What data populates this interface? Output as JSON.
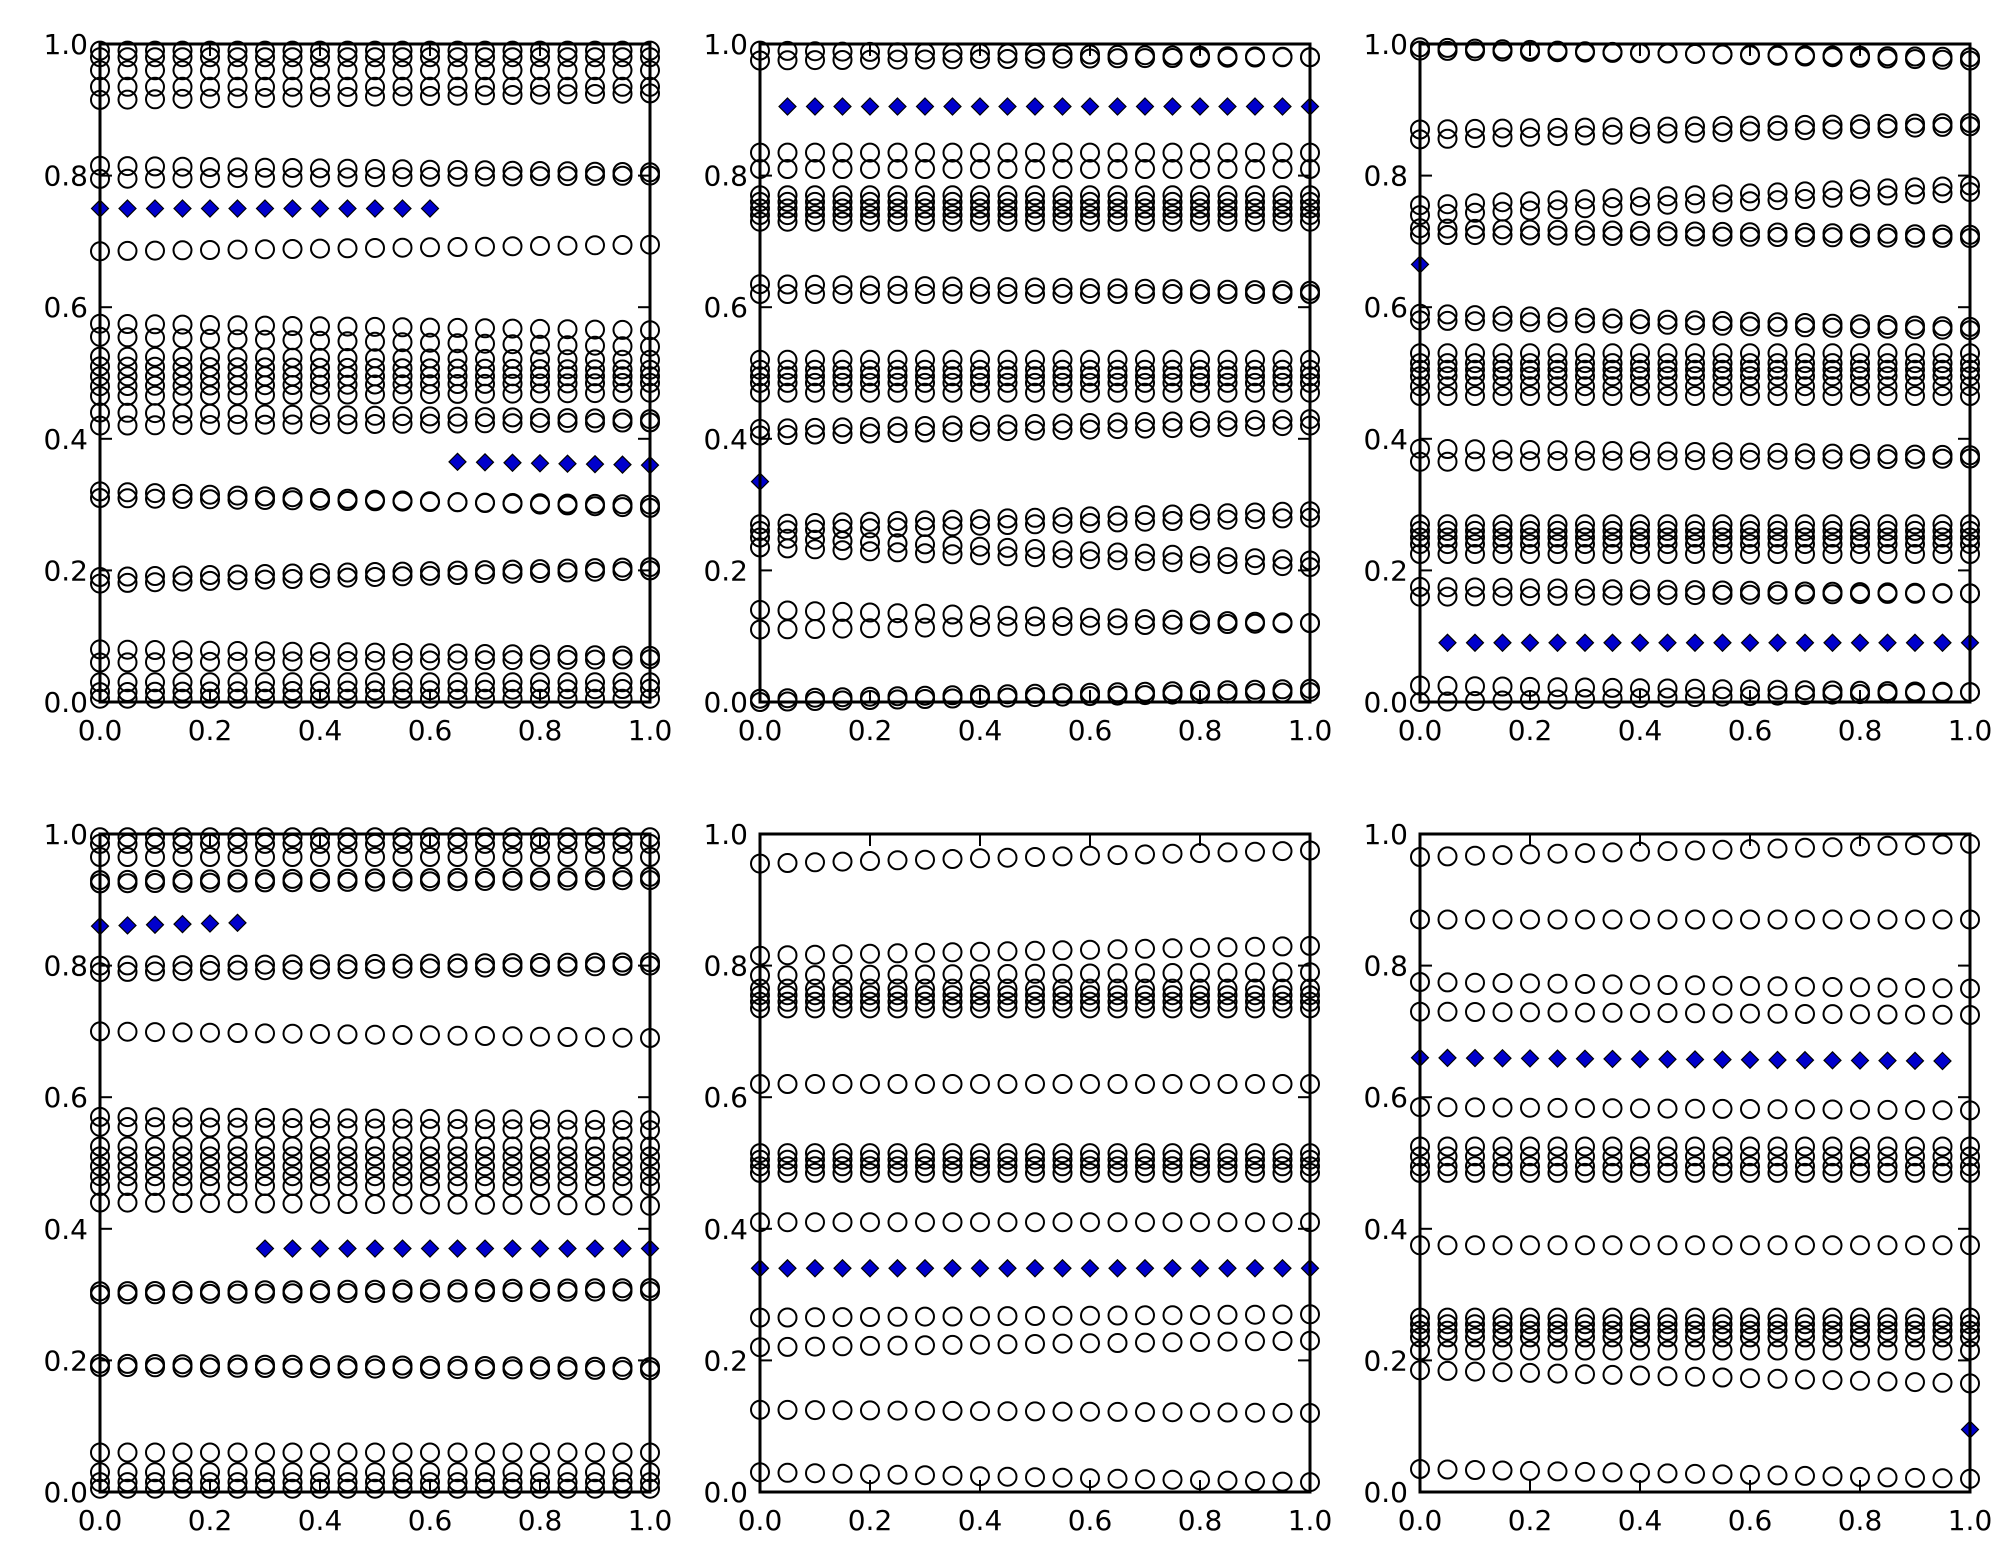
{
  "colors": {
    "diamond_fill": "#0000cc",
    "circle_stroke": "#000000",
    "background": "#ffffff"
  },
  "chart_data": {
    "type": "scatter",
    "title": "",
    "x_points": [
      0.0,
      0.05,
      0.1,
      0.15,
      0.2,
      0.25,
      0.3,
      0.35,
      0.4,
      0.45,
      0.5,
      0.55,
      0.6,
      0.65,
      0.7,
      0.75,
      0.8,
      0.85,
      0.9,
      0.95,
      1.0
    ],
    "xlim": [
      0,
      1
    ],
    "ylim": [
      0,
      1
    ],
    "xticks": [
      "0.0",
      "0.2",
      "0.4",
      "0.6",
      "0.8",
      "1.0"
    ],
    "yticks": [
      "0.0",
      "0.2",
      "0.4",
      "0.6",
      "0.8",
      "1.0"
    ],
    "panels": [
      {
        "name": "panel-1",
        "circle_series": [
          [
            0.99,
            0.99
          ],
          [
            0.98,
            0.98
          ],
          [
            0.96,
            0.96
          ],
          [
            0.935,
            0.935
          ],
          [
            0.915,
            0.925
          ],
          [
            0.815,
            0.805
          ],
          [
            0.795,
            0.8
          ],
          [
            0.685,
            0.695
          ],
          [
            0.575,
            0.565
          ],
          [
            0.555,
            0.54
          ],
          [
            0.525,
            0.52
          ],
          [
            0.51,
            0.505
          ],
          [
            0.495,
            0.495
          ],
          [
            0.48,
            0.485
          ],
          [
            0.465,
            0.47
          ],
          [
            0.44,
            0.43
          ],
          [
            0.42,
            0.425
          ],
          [
            0.32,
            0.295
          ],
          [
            0.31,
            0.3
          ],
          [
            0.19,
            0.205
          ],
          [
            0.18,
            0.2
          ],
          [
            0.08,
            0.07
          ],
          [
            0.06,
            0.065
          ],
          [
            0.03,
            0.03
          ],
          [
            0.015,
            0.02
          ],
          [
            0.005,
            0.005
          ]
        ],
        "diamond_series": [
          {
            "x_start": 0.0,
            "x_end": 0.6,
            "y_start": 0.75,
            "y_end": 0.75
          },
          {
            "x_start": 0.65,
            "x_end": 1.0,
            "y_start": 0.365,
            "y_end": 0.36
          }
        ]
      },
      {
        "name": "panel-2",
        "circle_series": [
          [
            0.99,
            0.98
          ],
          [
            0.975,
            0.98
          ],
          [
            0.835,
            0.835
          ],
          [
            0.81,
            0.81
          ],
          [
            0.77,
            0.77
          ],
          [
            0.76,
            0.76
          ],
          [
            0.75,
            0.75
          ],
          [
            0.74,
            0.74
          ],
          [
            0.73,
            0.73
          ],
          [
            0.635,
            0.625
          ],
          [
            0.62,
            0.62
          ],
          [
            0.52,
            0.52
          ],
          [
            0.505,
            0.505
          ],
          [
            0.495,
            0.495
          ],
          [
            0.485,
            0.485
          ],
          [
            0.47,
            0.47
          ],
          [
            0.415,
            0.43
          ],
          [
            0.405,
            0.42
          ],
          [
            0.27,
            0.29
          ],
          [
            0.26,
            0.28
          ],
          [
            0.25,
            0.215
          ],
          [
            0.235,
            0.205
          ],
          [
            0.14,
            0.12
          ],
          [
            0.11,
            0.12
          ],
          [
            0.005,
            0.02
          ],
          [
            0.0,
            0.015
          ]
        ],
        "diamond_series": [
          {
            "x_start": 0.0,
            "x_end": 0.0,
            "y_start": 0.335,
            "y_end": 0.335
          },
          {
            "x_start": 0.05,
            "x_end": 1.0,
            "y_start": 0.905,
            "y_end": 0.905
          }
        ]
      },
      {
        "name": "panel-3",
        "circle_series": [
          [
            0.995,
            0.975
          ],
          [
            0.99,
            0.98
          ],
          [
            0.87,
            0.88
          ],
          [
            0.855,
            0.875
          ],
          [
            0.755,
            0.785
          ],
          [
            0.74,
            0.775
          ],
          [
            0.72,
            0.71
          ],
          [
            0.71,
            0.705
          ],
          [
            0.59,
            0.57
          ],
          [
            0.58,
            0.565
          ],
          [
            0.53,
            0.53
          ],
          [
            0.515,
            0.515
          ],
          [
            0.505,
            0.505
          ],
          [
            0.495,
            0.495
          ],
          [
            0.48,
            0.48
          ],
          [
            0.465,
            0.465
          ],
          [
            0.385,
            0.375
          ],
          [
            0.365,
            0.37
          ],
          [
            0.27,
            0.27
          ],
          [
            0.26,
            0.26
          ],
          [
            0.25,
            0.25
          ],
          [
            0.24,
            0.24
          ],
          [
            0.225,
            0.225
          ],
          [
            0.175,
            0.165
          ],
          [
            0.16,
            0.165
          ],
          [
            0.025,
            0.015
          ],
          [
            0.0,
            0.015
          ]
        ],
        "diamond_series": [
          {
            "x_start": 0.0,
            "x_end": 0.0,
            "y_start": 0.665,
            "y_end": 0.665
          },
          {
            "x_start": 0.05,
            "x_end": 1.0,
            "y_start": 0.09,
            "y_end": 0.09
          }
        ]
      },
      {
        "name": "panel-4",
        "circle_series": [
          [
            0.995,
            0.995
          ],
          [
            0.985,
            0.985
          ],
          [
            0.965,
            0.965
          ],
          [
            0.93,
            0.935
          ],
          [
            0.925,
            0.93
          ],
          [
            0.8,
            0.805
          ],
          [
            0.79,
            0.8
          ],
          [
            0.7,
            0.69
          ],
          [
            0.57,
            0.565
          ],
          [
            0.555,
            0.55
          ],
          [
            0.525,
            0.525
          ],
          [
            0.51,
            0.51
          ],
          [
            0.495,
            0.495
          ],
          [
            0.48,
            0.48
          ],
          [
            0.465,
            0.465
          ],
          [
            0.44,
            0.435
          ],
          [
            0.305,
            0.31
          ],
          [
            0.3,
            0.305
          ],
          [
            0.195,
            0.19
          ],
          [
            0.19,
            0.185
          ],
          [
            0.06,
            0.06
          ],
          [
            0.03,
            0.03
          ],
          [
            0.015,
            0.015
          ],
          [
            0.005,
            0.005
          ]
        ],
        "diamond_series": [
          {
            "x_start": 0.0,
            "x_end": 0.25,
            "y_start": 0.86,
            "y_end": 0.865
          },
          {
            "x_start": 0.3,
            "x_end": 1.0,
            "y_start": 0.37,
            "y_end": 0.37
          }
        ]
      },
      {
        "name": "panel-5",
        "circle_series": [
          [
            0.955,
            0.975
          ],
          [
            0.815,
            0.83
          ],
          [
            0.785,
            0.79
          ],
          [
            0.765,
            0.765
          ],
          [
            0.755,
            0.755
          ],
          [
            0.745,
            0.745
          ],
          [
            0.735,
            0.735
          ],
          [
            0.62,
            0.62
          ],
          [
            0.515,
            0.515
          ],
          [
            0.505,
            0.505
          ],
          [
            0.495,
            0.495
          ],
          [
            0.485,
            0.485
          ],
          [
            0.41,
            0.41
          ],
          [
            0.265,
            0.27
          ],
          [
            0.22,
            0.23
          ],
          [
            0.125,
            0.12
          ],
          [
            0.03,
            0.015
          ]
        ],
        "diamond_series": [
          {
            "x_start": 0.0,
            "x_end": 1.0,
            "y_start": 0.34,
            "y_end": 0.34
          }
        ]
      },
      {
        "name": "panel-6",
        "circle_series": [
          [
            0.965,
            0.985
          ],
          [
            0.87,
            0.87
          ],
          [
            0.775,
            0.765
          ],
          [
            0.73,
            0.725
          ],
          [
            0.585,
            0.58
          ],
          [
            0.525,
            0.525
          ],
          [
            0.51,
            0.51
          ],
          [
            0.495,
            0.495
          ],
          [
            0.485,
            0.485
          ],
          [
            0.375,
            0.375
          ],
          [
            0.265,
            0.265
          ],
          [
            0.255,
            0.255
          ],
          [
            0.245,
            0.245
          ],
          [
            0.235,
            0.235
          ],
          [
            0.215,
            0.215
          ],
          [
            0.185,
            0.165
          ],
          [
            0.035,
            0.02
          ]
        ],
        "diamond_series": [
          {
            "x_start": 0.0,
            "x_end": 0.95,
            "y_start": 0.66,
            "y_end": 0.655
          },
          {
            "x_start": 1.0,
            "x_end": 1.0,
            "y_start": 0.095,
            "y_end": 0.095
          }
        ]
      }
    ]
  }
}
